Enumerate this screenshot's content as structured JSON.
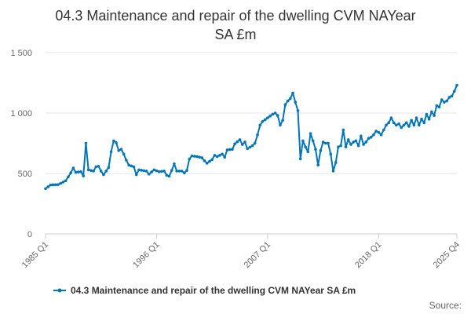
{
  "chart_data": {
    "type": "line",
    "title_lines": [
      "04.3 Maintenance and repair of the dwelling CVM NAYear",
      "SA £m"
    ],
    "title": "04.3 Maintenance and repair of the dwelling CVM NAYear SA £m",
    "xlabel": "",
    "ylabel": "",
    "ylim": [
      0,
      1500
    ],
    "y_ticks": [
      0,
      500,
      1000,
      1500
    ],
    "y_tick_labels": [
      "0",
      "500",
      "1 000",
      "1 500"
    ],
    "x_tick_labels": [
      "1985 Q1",
      "1996 Q1",
      "2007 Q1",
      "2018 Q1",
      "2025 Q4"
    ],
    "x_tick_index": [
      0,
      44,
      88,
      132,
      163
    ],
    "grid": true,
    "legend_position": "bottom",
    "series": [
      {
        "name": "04.3 Maintenance and repair of the dwelling CVM NAYear SA £m",
        "color": "#0075b8",
        "anchors": [
          [
            0,
            375
          ],
          [
            2,
            405
          ],
          [
            5,
            408
          ],
          [
            8,
            440
          ],
          [
            10,
            505
          ],
          [
            11,
            545
          ],
          [
            12,
            510
          ],
          [
            14,
            515
          ],
          [
            15,
            480
          ],
          [
            16,
            750
          ],
          [
            17,
            530
          ],
          [
            19,
            520
          ],
          [
            20,
            555
          ],
          [
            21,
            560
          ],
          [
            22,
            520
          ],
          [
            23,
            490
          ],
          [
            25,
            550
          ],
          [
            26,
            680
          ],
          [
            27,
            770
          ],
          [
            28,
            755
          ],
          [
            29,
            690
          ],
          [
            30,
            700
          ],
          [
            31,
            660
          ],
          [
            32,
            610
          ],
          [
            33,
            570
          ],
          [
            35,
            555
          ],
          [
            36,
            490
          ],
          [
            37,
            530
          ],
          [
            40,
            520
          ],
          [
            41,
            495
          ],
          [
            43,
            530
          ],
          [
            45,
            515
          ],
          [
            47,
            520
          ],
          [
            48,
            485
          ],
          [
            49,
            478
          ],
          [
            50,
            525
          ],
          [
            51,
            580
          ],
          [
            52,
            520
          ],
          [
            54,
            520
          ],
          [
            55,
            505
          ],
          [
            56,
            525
          ],
          [
            57,
            620
          ],
          [
            58,
            645
          ],
          [
            60,
            640
          ],
          [
            61,
            635
          ],
          [
            62,
            630
          ],
          [
            63,
            605
          ],
          [
            64,
            585
          ],
          [
            66,
            615
          ],
          [
            67,
            650
          ],
          [
            68,
            640
          ],
          [
            70,
            660
          ],
          [
            71,
            635
          ],
          [
            72,
            695
          ],
          [
            74,
            700
          ],
          [
            75,
            745
          ],
          [
            77,
            780
          ],
          [
            78,
            740
          ],
          [
            79,
            760
          ],
          [
            80,
            705
          ],
          [
            82,
            730
          ],
          [
            83,
            750
          ],
          [
            84,
            820
          ],
          [
            85,
            900
          ],
          [
            86,
            930
          ],
          [
            88,
            960
          ],
          [
            90,
            990
          ],
          [
            91,
            1000
          ],
          [
            92,
            980
          ],
          [
            93,
            900
          ],
          [
            94,
            940
          ],
          [
            95,
            1070
          ],
          [
            96,
            1100
          ],
          [
            97,
            1120
          ],
          [
            98,
            1165
          ],
          [
            99,
            1090
          ],
          [
            100,
            1020
          ],
          [
            101,
            620
          ],
          [
            102,
            770
          ],
          [
            103,
            720
          ],
          [
            104,
            680
          ],
          [
            105,
            830
          ],
          [
            106,
            770
          ],
          [
            107,
            700
          ],
          [
            108,
            570
          ],
          [
            109,
            690
          ],
          [
            110,
            760
          ],
          [
            111,
            750
          ],
          [
            112,
            750
          ],
          [
            113,
            660
          ],
          [
            114,
            520
          ],
          [
            115,
            590
          ],
          [
            116,
            720
          ],
          [
            117,
            730
          ],
          [
            118,
            860
          ],
          [
            119,
            720
          ],
          [
            120,
            780
          ],
          [
            121,
            740
          ],
          [
            122,
            760
          ],
          [
            123,
            770
          ],
          [
            124,
            730
          ],
          [
            125,
            810
          ],
          [
            126,
            740
          ],
          [
            127,
            760
          ],
          [
            128,
            790
          ],
          [
            129,
            800
          ],
          [
            130,
            820
          ],
          [
            131,
            850
          ],
          [
            132,
            840
          ],
          [
            133,
            820
          ],
          [
            134,
            860
          ],
          [
            135,
            900
          ],
          [
            136,
            920
          ],
          [
            137,
            960
          ],
          [
            138,
            920
          ],
          [
            139,
            900
          ],
          [
            140,
            910
          ],
          [
            141,
            880
          ],
          [
            142,
            900
          ],
          [
            143,
            920
          ],
          [
            144,
            890
          ],
          [
            145,
            940
          ],
          [
            146,
            900
          ],
          [
            147,
            960
          ],
          [
            148,
            900
          ],
          [
            149,
            950
          ],
          [
            150,
            920
          ],
          [
            151,
            990
          ],
          [
            152,
            950
          ],
          [
            153,
            1010
          ],
          [
            154,
            980
          ],
          [
            155,
            1060
          ],
          [
            156,
            1050
          ],
          [
            157,
            1110
          ],
          [
            158,
            1090
          ],
          [
            159,
            1100
          ],
          [
            160,
            1130
          ],
          [
            161,
            1140
          ],
          [
            162,
            1180
          ],
          [
            163,
            1230
          ]
        ]
      }
    ]
  },
  "source_label": "Source:"
}
